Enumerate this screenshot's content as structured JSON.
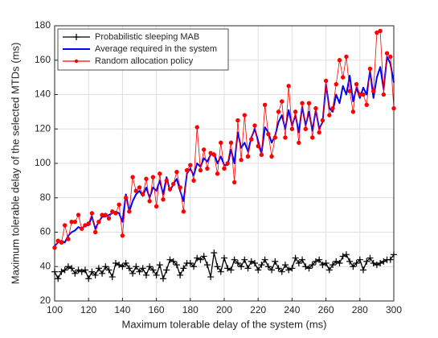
{
  "chart_data": {
    "type": "line",
    "xlabel": "Maximum tolerable delay of the system (ms)",
    "ylabel": "Maximum tolerable delay of the selected MTDs (ms)",
    "x": [
      100,
      102,
      104,
      106,
      108,
      110,
      112,
      114,
      116,
      118,
      120,
      122,
      124,
      126,
      128,
      130,
      132,
      134,
      136,
      138,
      140,
      142,
      144,
      146,
      148,
      150,
      152,
      154,
      156,
      158,
      160,
      162,
      164,
      166,
      168,
      170,
      172,
      174,
      176,
      178,
      180,
      182,
      184,
      186,
      188,
      190,
      192,
      194,
      196,
      198,
      200,
      202,
      204,
      206,
      208,
      210,
      212,
      214,
      216,
      218,
      220,
      222,
      224,
      226,
      228,
      230,
      232,
      234,
      236,
      238,
      240,
      242,
      244,
      246,
      248,
      250,
      252,
      254,
      256,
      258,
      260,
      262,
      264,
      266,
      268,
      270,
      272,
      274,
      276,
      278,
      280,
      282,
      284,
      286,
      288,
      290,
      292,
      294,
      296,
      298,
      300
    ],
    "xlim": [
      100,
      300
    ],
    "xticks": [
      100,
      120,
      140,
      160,
      180,
      200,
      220,
      240,
      260,
      280,
      300
    ],
    "ylim": [
      20,
      180
    ],
    "yticks": [
      20,
      40,
      60,
      80,
      100,
      120,
      140,
      160,
      180
    ],
    "grid": true,
    "legend": "upper left",
    "series": [
      {
        "name": "Probabilistic sleeping MAB",
        "color": "#000000",
        "marker": "+",
        "values": [
          37,
          33,
          37,
          38,
          40,
          39,
          36,
          38,
          37,
          38,
          33,
          37,
          35,
          39,
          36,
          40,
          38,
          34,
          42,
          41,
          40,
          42,
          39,
          36,
          40,
          37,
          39,
          35,
          40,
          38,
          35,
          41,
          33,
          38,
          44,
          43,
          41,
          35,
          39,
          42,
          42,
          40,
          45,
          44,
          46,
          41,
          34,
          48,
          40,
          37,
          45,
          39,
          38,
          44,
          42,
          40,
          44,
          39,
          43,
          42,
          38,
          41,
          44,
          40,
          38,
          43,
          39,
          37,
          41,
          38,
          39,
          45,
          42,
          44,
          40,
          39,
          41,
          43,
          44,
          41,
          42,
          38,
          41,
          43,
          42,
          46,
          47,
          43,
          40,
          42,
          44,
          38,
          43,
          45,
          42,
          41,
          42,
          43,
          44,
          44,
          47
        ]
      },
      {
        "name": "Average required in the system",
        "color": "#0000ff",
        "marker": "none",
        "values": [
          52,
          54,
          55,
          54,
          58,
          60,
          61,
          63,
          62,
          64,
          64,
          69,
          62,
          66,
          69,
          69,
          70,
          71,
          72,
          71,
          66,
          82,
          72,
          78,
          82,
          84,
          81,
          86,
          80,
          86,
          84,
          90,
          82,
          92,
          84,
          88,
          91,
          84,
          78,
          94,
          97,
          93,
          100,
          98,
          103,
          101,
          105,
          106,
          100,
          104,
          99,
          99,
          108,
          100,
          118,
          109,
          112,
          107,
          115,
          120,
          113,
          106,
          121,
          118,
          112,
          116,
          124,
          128,
          120,
          131,
          122,
          128,
          118,
          133,
          122,
          130,
          119,
          131,
          120,
          124,
          146,
          132,
          130,
          140,
          135,
          145,
          140,
          151,
          136,
          144,
          138,
          144,
          140,
          154,
          138,
          150,
          156,
          143,
          162,
          158,
          147
        ]
      },
      {
        "name": "Random allocation policy",
        "color": "#ff0000",
        "marker": "o",
        "values": [
          51,
          55,
          54,
          64,
          56,
          66,
          66,
          70,
          62,
          64,
          65,
          71,
          60,
          66,
          70,
          70,
          68,
          72,
          71,
          76,
          58,
          80,
          72,
          92,
          84,
          86,
          82,
          91,
          78,
          92,
          75,
          94,
          79,
          90,
          85,
          88,
          95,
          86,
          72,
          96,
          99,
          90,
          121,
          96,
          108,
          97,
          106,
          105,
          94,
          112,
          97,
          100,
          112,
          89,
          125,
          102,
          128,
          104,
          114,
          122,
          110,
          105,
          134,
          117,
          104,
          115,
          130,
          136,
          115,
          145,
          120,
          130,
          112,
          135,
          120,
          135,
          115,
          132,
          118,
          125,
          148,
          128,
          132,
          146,
          160,
          150,
          162,
          142,
          130,
          146,
          140,
          140,
          134,
          155,
          142,
          176,
          177,
          140,
          164,
          162,
          132
        ]
      }
    ]
  }
}
